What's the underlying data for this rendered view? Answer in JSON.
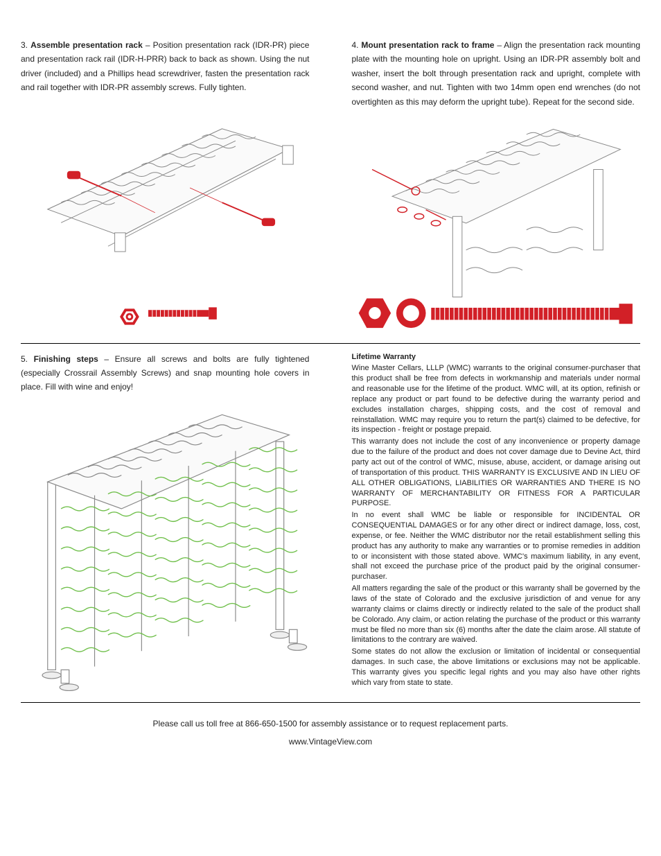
{
  "colors": {
    "text": "#222222",
    "black": "#000000",
    "accent_red": "#d22027",
    "rack_line": "#888888",
    "wine_green": "#6fbf4a",
    "light_fill": "#f7f7f7"
  },
  "step3": {
    "num": "3.",
    "title": "Assemble presentation rack",
    "body": " – Position presentation rack (IDR-PR) piece and presentation rack rail (IDR-H-PRR) back to back as shown. Using the nut driver (included) and a Phillips head screwdriver, fasten the presentation rack and rail together with IDR-PR assembly screws. Fully tighten."
  },
  "step4": {
    "num": "4.",
    "title": "Mount presentation rack to frame",
    "body": " – Align the presentation rack mounting plate with the mounting hole on upright. Using an IDR-PR assembly bolt and washer, insert the bolt through presentation rack and upright, complete with second washer, and nut. Tighten with two 14mm open end wrenches (do not overtighten as this may deform the upright tube). Repeat for the second side."
  },
  "step5": {
    "num": "5.",
    "title": "Finishing steps",
    "body": " – Ensure all screws and bolts are fully tightened (especially Crossrail Assembly Screws) and snap mounting hole covers in place. Fill with wine and enjoy!"
  },
  "warranty": {
    "heading": "Lifetime Warranty",
    "paragraphs": [
      "Wine Master Cellars, LLLP (WMC) warrants to the original consumer-purchaser that this product shall be free from defects in workmanship and materials under normal and reasonable use for the lifetime of the product.  WMC will, at its option, refinish or replace any product or part found to be defective during the warranty period and excludes installation charges, shipping costs, and the cost of removal and reinstallation. WMC may require you to return the part(s) claimed to be defective, for its inspection - freight or postage prepaid.",
      "This warranty does not include the cost of any inconvenience or property damage due to the failure of the product and does not cover damage due to Devine Act, third party act out of the control of WMC, misuse, abuse, accident, or damage arising out of transportation of this product.   THIS WARRANTY IS EXCLUSIVE AND IN LIEU OF ALL OTHER OBLIGATIONS, LIABILITIES OR WARRANTIES AND THERE IS NO WARRANTY OF MERCHANTABILITY OR FITNESS FOR A PARTICULAR PURPOSE.",
      "In no event shall WMC be liable or responsible for INCIDENTAL OR CONSEQUENTIAL DAMAGES or for any other direct or indirect damage, loss, cost, expense, or fee.  Neither the WMC distributor nor the retail establishment selling this product has any authority to make any warranties or to promise remedies in addition to or inconsistent with those stated above. WMC's maximum liability, in any event, shall not exceed the purchase price of the product paid by the original consumer-purchaser.",
      "All matters regarding the sale of the product or this warranty shall be governed by the laws of the state of Colorado and the exclusive jurisdiction of and venue for any warranty claims or claims directly or indirectly related to the sale of the product shall be Colorado.  Any claim, or action relating the purchase of the product or this warranty must be filed no more than six (6) months after the date the claim arose.  All statute of limitations to the contrary are waived.",
      "Some states do not allow the exclusion or limitation of incidental or consequential damages. In such case, the above limitations or exclusions may not be applicable. This warranty gives you specific legal rights and you may also have other rights which vary from state to state."
    ]
  },
  "footer": {
    "line1": "Please call us toll free at 866-650-1500 for assembly assistance or to request replacement parts.",
    "url": "www.VintageView.com"
  },
  "figures": {
    "step3": {
      "type": "assembly-diagram",
      "stroke": "#888888",
      "accent": "#d22027"
    },
    "step4": {
      "type": "mounting-diagram",
      "stroke": "#888888",
      "accent": "#d22027"
    },
    "step5": {
      "type": "final-rack-diagram",
      "stroke": "#888888",
      "accent": "#6fbf4a"
    },
    "hardware3": {
      "nut_color": "#d22027",
      "bolt_color": "#d22027"
    },
    "hardware4": {
      "nut_color": "#d22027",
      "washer_color": "#d22027",
      "bolt_color": "#d22027"
    }
  }
}
